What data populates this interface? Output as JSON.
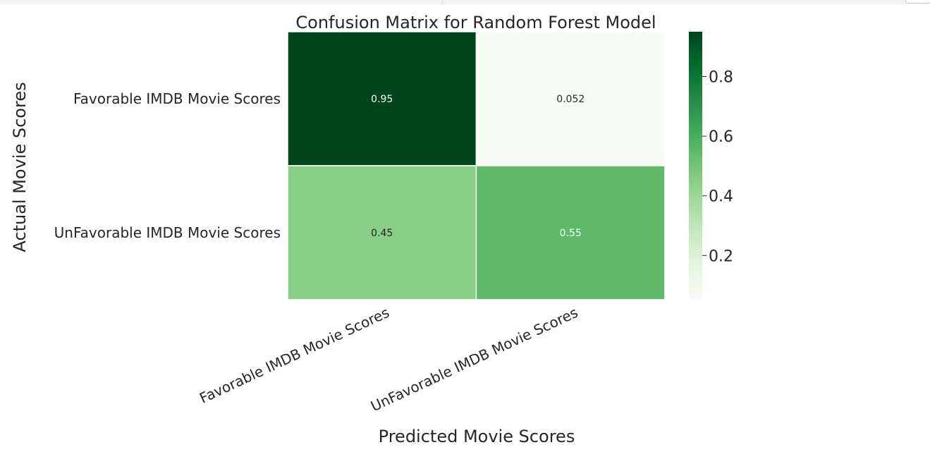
{
  "chart_data": {
    "type": "heatmap",
    "title": "Confusion Matrix for Random Forest Model",
    "xlabel": "Predicted Movie Scores",
    "ylabel": "Actual Movie Scores",
    "x_categories": [
      "Favorable IMDB Movie Scores",
      "UnFavorable IMDB Movie Scores"
    ],
    "y_categories": [
      "Favorable IMDB Movie Scores",
      "UnFavorable IMDB Movie Scores"
    ],
    "values": [
      [
        0.95,
        0.052
      ],
      [
        0.45,
        0.55
      ]
    ],
    "value_labels": [
      [
        "0.95",
        "0.052"
      ],
      [
        "0.45",
        "0.55"
      ]
    ],
    "colormap": "Greens",
    "colorbar": {
      "range": [
        0.052,
        0.95
      ],
      "ticks": [
        0.2,
        0.4,
        0.6,
        0.8
      ],
      "tick_labels": [
        "0.2",
        "0.4",
        "0.6",
        "0.8"
      ]
    },
    "grid": false,
    "colorbar_position": "right"
  }
}
